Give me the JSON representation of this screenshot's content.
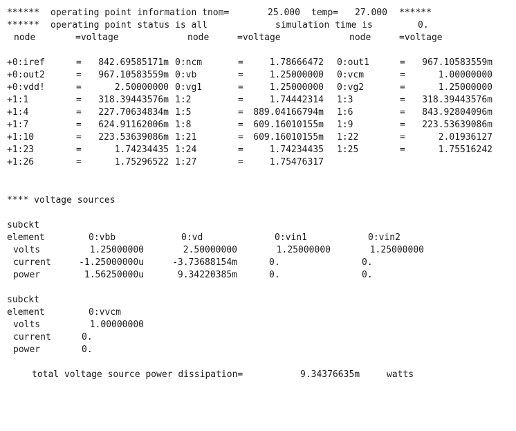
{
  "header": {
    "line1": {
      "prefix": "******",
      "text": "operating point information tnom=",
      "tnom": "25.000",
      "temp_label": "temp=",
      "temp": "27.000",
      "suffix": "******"
    },
    "line2": {
      "prefix": "******",
      "text": "operating point status is all",
      "sim_label": "simulation time is",
      "sim_time": "0."
    },
    "col_headers": {
      "node1": "node",
      "voltage1": "=voltage",
      "node2": "node",
      "voltage2": "=voltage",
      "node3": "node",
      "voltage3": "=voltage"
    }
  },
  "node_rows": [
    [
      {
        "node": "+0:iref",
        "value": "842.69585171m"
      },
      {
        "node": "0:ncm",
        "value": "1.78666472"
      },
      {
        "node": "0:out1",
        "value": "967.10583559m"
      }
    ],
    [
      {
        "node": "+0:out2",
        "value": "967.10583559m"
      },
      {
        "node": "0:vb",
        "value": "1.25000000"
      },
      {
        "node": "0:vcm",
        "value": "1.00000000"
      }
    ],
    [
      {
        "node": "+0:vdd!",
        "value": "2.50000000"
      },
      {
        "node": "0:vg1",
        "value": "1.25000000"
      },
      {
        "node": "0:vg2",
        "value": "1.25000000"
      }
    ],
    [
      {
        "node": "+1:1",
        "value": "318.39443576m"
      },
      {
        "node": "1:2",
        "value": "1.74442314"
      },
      {
        "node": "1:3",
        "value": "318.39443576m"
      }
    ],
    [
      {
        "node": "+1:4",
        "value": "227.70634834m"
      },
      {
        "node": "1:5",
        "value": "889.04166794m"
      },
      {
        "node": "1:6",
        "value": "843.92804096m"
      }
    ],
    [
      {
        "node": "+1:7",
        "value": "624.91162006m"
      },
      {
        "node": "1:8",
        "value": "609.16010155m"
      },
      {
        "node": "1:9",
        "value": "223.53639086m"
      }
    ],
    [
      {
        "node": "+1:10",
        "value": "223.53639086m"
      },
      {
        "node": "1:21",
        "value": "609.16010155m"
      },
      {
        "node": "1:22",
        "value": "2.01936127"
      }
    ],
    [
      {
        "node": "+1:23",
        "value": "1.74234435"
      },
      {
        "node": "1:24",
        "value": "1.74234435"
      },
      {
        "node": "1:25",
        "value": "1.75516242"
      }
    ],
    [
      {
        "node": "+1:26",
        "value": "1.75296522"
      },
      {
        "node": "1:27",
        "value": "1.75476317"
      },
      null
    ]
  ],
  "voltage_sources": {
    "title": "**** voltage sources",
    "blocks": [
      {
        "subckt_label": "subckt",
        "element_label": "element",
        "elements": [
          "0:vbb",
          "0:vd",
          "0:vin1",
          "0:vin2"
        ],
        "rows": [
          {
            "label": "volts",
            "values": [
              "1.25000000",
              "2.50000000",
              "1.25000000",
              "1.25000000"
            ]
          },
          {
            "label": "current",
            "values": [
              "-1.25000000u",
              "-3.73688154m",
              "0.",
              "0."
            ]
          },
          {
            "label": "power",
            "values": [
              "1.56250000u",
              "9.34220385m",
              "0.",
              "0."
            ]
          }
        ]
      },
      {
        "subckt_label": "subckt",
        "element_label": "element",
        "elements": [
          "0:vvcm"
        ],
        "rows": [
          {
            "label": "volts",
            "values": [
              "1.00000000"
            ]
          },
          {
            "label": "current",
            "values": [
              "0."
            ]
          },
          {
            "label": "power",
            "values": [
              "0."
            ]
          }
        ]
      }
    ]
  },
  "total": {
    "label": "total voltage source power dissipation=",
    "value": "9.34376635m",
    "unit": "watts"
  }
}
